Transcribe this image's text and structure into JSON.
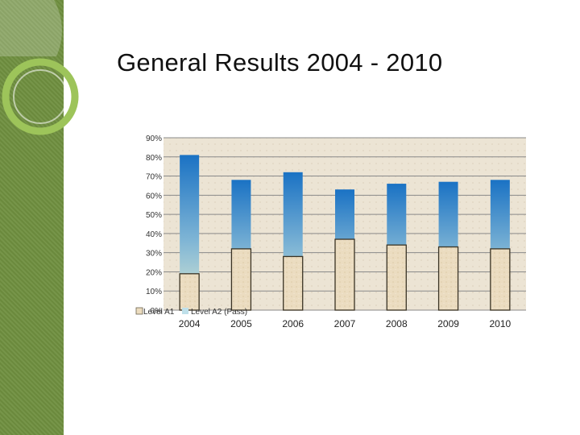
{
  "slide": {
    "title": "General Results 2004 - 2010"
  },
  "colors": {
    "band": "#6f8f3f",
    "plot_bg": "#ece4d4",
    "a1_fill": "#ecdcbf",
    "a2_top": "#1a72c4",
    "a2_bottom": "#dcebd4"
  },
  "chart_data": {
    "type": "bar",
    "categories": [
      "2004",
      "2005",
      "2006",
      "2007",
      "2008",
      "2009",
      "2010"
    ],
    "series": [
      {
        "name": "Level A1",
        "values": [
          19,
          32,
          28,
          37,
          34,
          33,
          32
        ]
      },
      {
        "name": "Level A2 (Pass)",
        "values": [
          81,
          68,
          72,
          63,
          66,
          67,
          68
        ]
      }
    ],
    "overlap": true,
    "y_ticks": [
      "0%",
      "10%",
      "20%",
      "30%",
      "40%",
      "50%",
      "60%",
      "70%",
      "80%",
      "90%"
    ],
    "ylim": [
      0,
      90
    ],
    "grid": true,
    "legend": "bottom-left"
  }
}
